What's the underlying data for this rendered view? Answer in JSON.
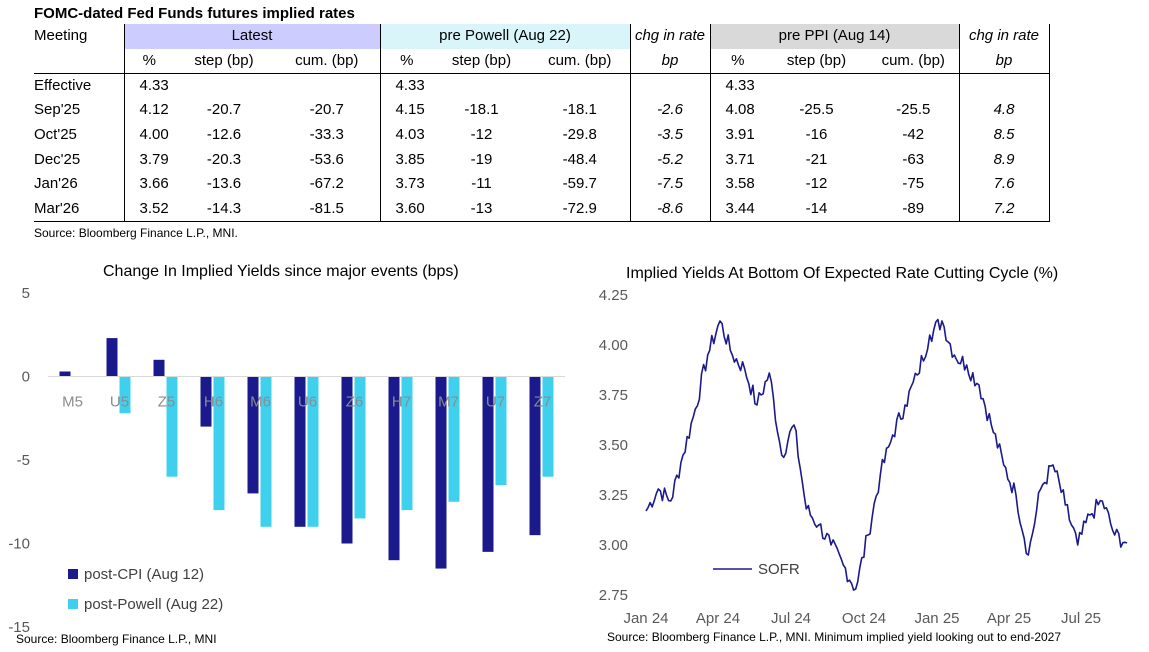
{
  "table": {
    "title": "FOMC-dated Fed Funds futures implied rates",
    "meeting_header": "Meeting",
    "groups": {
      "latest": "Latest",
      "pre_powell": "pre Powell (Aug 22)",
      "chg1": "chg in rate",
      "pre_ppi": "pre PPI (Aug 14)",
      "chg2": "chg in rate"
    },
    "subheaders": {
      "pct": "%",
      "step": "step (bp)",
      "cum": "cum. (bp)",
      "bp": "bp"
    },
    "rows": [
      {
        "meeting": "Effective",
        "l_pct": "4.33",
        "l_step": "",
        "l_cum": "",
        "p_pct": "4.33",
        "p_step": "",
        "p_cum": "",
        "chg1": "",
        "q_pct": "4.33",
        "q_step": "",
        "q_cum": "",
        "chg2": ""
      },
      {
        "meeting": "Sep'25",
        "l_pct": "4.12",
        "l_step": "-20.7",
        "l_cum": "-20.7",
        "p_pct": "4.15",
        "p_step": "-18.1",
        "p_cum": "-18.1",
        "chg1": "-2.6",
        "q_pct": "4.08",
        "q_step": "-25.5",
        "q_cum": "-25.5",
        "chg2": "4.8"
      },
      {
        "meeting": "Oct'25",
        "l_pct": "4.00",
        "l_step": "-12.6",
        "l_cum": "-33.3",
        "p_pct": "4.03",
        "p_step": "-12",
        "p_cum": "-29.8",
        "chg1": "-3.5",
        "q_pct": "3.91",
        "q_step": "-16",
        "q_cum": "-42",
        "chg2": "8.5"
      },
      {
        "meeting": "Dec'25",
        "l_pct": "3.79",
        "l_step": "-20.3",
        "l_cum": "-53.6",
        "p_pct": "3.85",
        "p_step": "-19",
        "p_cum": "-48.4",
        "chg1": "-5.2",
        "q_pct": "3.71",
        "q_step": "-21",
        "q_cum": "-63",
        "chg2": "8.9"
      },
      {
        "meeting": "Jan'26",
        "l_pct": "3.66",
        "l_step": "-13.6",
        "l_cum": "-67.2",
        "p_pct": "3.73",
        "p_step": "-11",
        "p_cum": "-59.7",
        "chg1": "-7.5",
        "q_pct": "3.58",
        "q_step": "-12",
        "q_cum": "-75",
        "chg2": "7.6"
      },
      {
        "meeting": "Mar'26",
        "l_pct": "3.52",
        "l_step": "-14.3",
        "l_cum": "-81.5",
        "p_pct": "3.60",
        "p_step": "-13",
        "p_cum": "-72.9",
        "chg1": "-8.6",
        "q_pct": "3.44",
        "q_step": "-14",
        "q_cum": "-89",
        "chg2": "7.2"
      }
    ],
    "source": "Source: Bloomberg Finance L.P., MNI."
  },
  "chart_data": [
    {
      "type": "bar",
      "title": "Change In Implied Yields since major events (bps)",
      "categories": [
        "M5",
        "U5",
        "Z5",
        "H6",
        "M6",
        "U6",
        "Z6",
        "H7",
        "M7",
        "U7",
        "Z7"
      ],
      "series": [
        {
          "name": "post-CPI (Aug 12)",
          "color": "#1a1a8c",
          "values": [
            0.3,
            2.3,
            1.0,
            -3.0,
            -7.0,
            -9.0,
            -10.0,
            -11.0,
            -11.5,
            -10.5,
            -9.5
          ]
        },
        {
          "name": "post-Powell (Aug 22)",
          "color": "#3fd0ee",
          "values": [
            0.0,
            -2.2,
            -6.0,
            -8.0,
            -9.0,
            -9.0,
            -8.5,
            -8.0,
            -7.5,
            -6.5,
            -6.0
          ]
        }
      ],
      "ylim": [
        -15,
        5
      ],
      "yticks": [
        "5",
        "0",
        "-5",
        "-10",
        "-15"
      ],
      "source": "Source: Bloomberg Finance L.P., MNI"
    },
    {
      "type": "line",
      "title": "Implied Yields At Bottom Of Expected Rate Cutting Cycle (%)",
      "series": [
        {
          "name": "SOFR",
          "color": "#1a1a8c"
        }
      ],
      "xticks": [
        "Jan 24",
        "Apr 24",
        "Jul 24",
        "Oct 24",
        "Jan 25",
        "Apr 25",
        "Jul 25"
      ],
      "yticks": [
        "4.25",
        "4.00",
        "3.75",
        "3.50",
        "3.25",
        "3.00",
        "2.75"
      ],
      "ylim": [
        2.75,
        4.25
      ],
      "x": [
        "2024-01",
        "2024-02",
        "2024-02",
        "2024-03",
        "2024-03",
        "2024-04",
        "2024-04",
        "2024-05",
        "2024-05",
        "2024-06",
        "2024-06",
        "2024-07",
        "2024-07",
        "2024-08",
        "2024-08",
        "2024-09",
        "2024-09",
        "2024-10",
        "2024-10",
        "2024-11",
        "2024-11",
        "2024-12",
        "2024-12",
        "2025-01",
        "2025-01",
        "2025-02",
        "2025-02",
        "2025-03",
        "2025-03",
        "2025-04",
        "2025-04",
        "2025-05",
        "2025-05",
        "2025-06",
        "2025-06",
        "2025-07",
        "2025-07",
        "2025-08",
        "2025-08",
        "2025-09"
      ],
      "y": [
        3.17,
        3.28,
        3.22,
        3.45,
        3.68,
        3.95,
        4.12,
        3.95,
        3.88,
        3.7,
        3.86,
        3.45,
        3.6,
        3.18,
        3.1,
        3.0,
        2.9,
        2.78,
        3.05,
        3.35,
        3.55,
        3.7,
        3.85,
        4.05,
        4.12,
        3.95,
        3.9,
        3.8,
        3.6,
        3.4,
        3.25,
        2.95,
        3.28,
        3.4,
        3.2,
        3.0,
        3.15,
        3.22,
        3.05,
        3.01
      ],
      "source": "Source: Bloomberg Finance L.P., MNI. Minimum implied yield looking out to end-2027"
    }
  ]
}
